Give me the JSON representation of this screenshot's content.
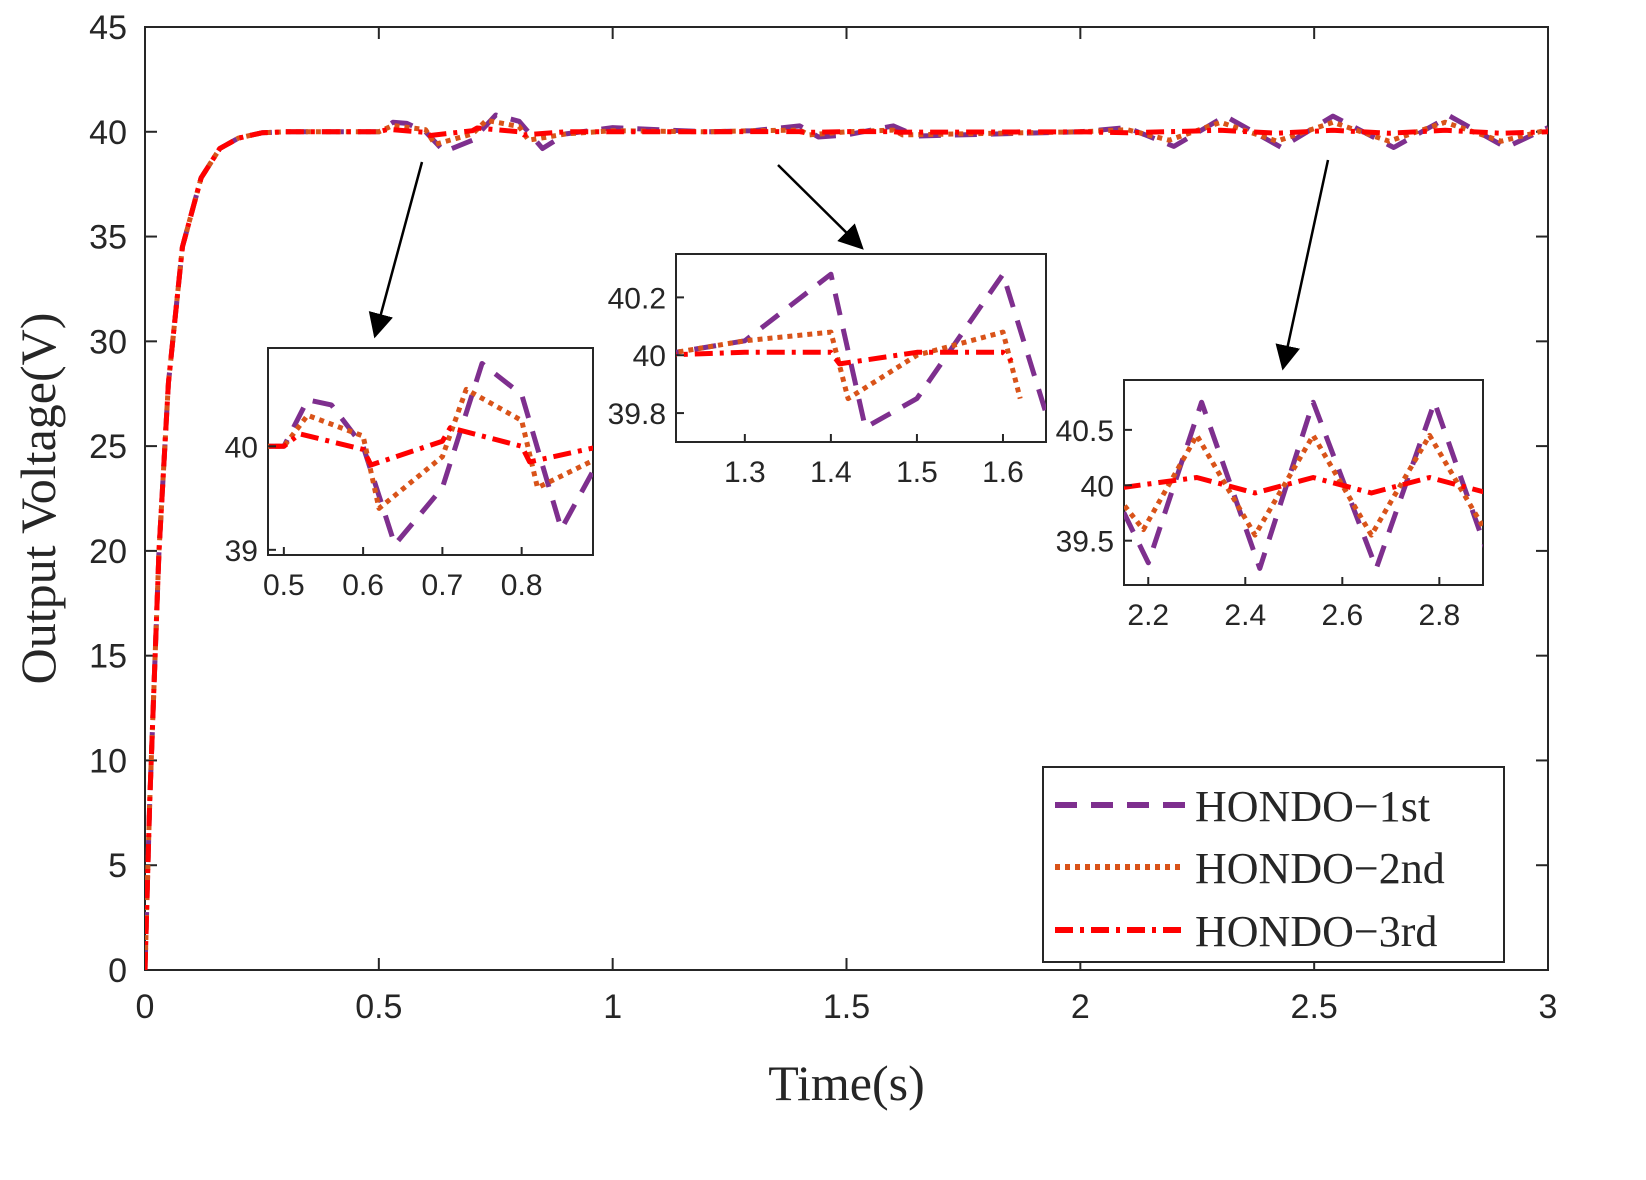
{
  "chart_data": {
    "type": "line",
    "title": "",
    "xlabel": "Time(s)",
    "ylabel": "Output Voltage(V)",
    "xlim": [
      0,
      3
    ],
    "ylim": [
      0,
      45
    ],
    "xticks": [
      "0",
      "0.5",
      "1",
      "1.5",
      "2",
      "2.5",
      "3"
    ],
    "yticks": [
      "0",
      "5",
      "10",
      "15",
      "20",
      "25",
      "30",
      "35",
      "40",
      "45"
    ],
    "grid": false,
    "legend_position": "bottom-right",
    "series": [
      {
        "name": "HONDO−1st",
        "color": "#7E2F8E",
        "dash": "dashed",
        "x": [
          0,
          0.01,
          0.03,
          0.05,
          0.08,
          0.12,
          0.16,
          0.2,
          0.25,
          0.3,
          0.5,
          0.53,
          0.56,
          0.6,
          0.64,
          0.7,
          0.75,
          0.8,
          0.85,
          0.9,
          1.0,
          1.2,
          1.3,
          1.4,
          1.44,
          1.5,
          1.6,
          1.65,
          2.0,
          2.1,
          2.2,
          2.31,
          2.43,
          2.54,
          2.67,
          2.79,
          2.91,
          3.0
        ],
        "y": [
          0,
          8,
          20,
          28,
          34.5,
          37.8,
          39.2,
          39.7,
          39.95,
          40.0,
          40.0,
          40.45,
          40.4,
          40.0,
          39.05,
          39.6,
          40.8,
          40.5,
          39.2,
          39.9,
          40.2,
          40.0,
          40.05,
          40.28,
          39.75,
          39.85,
          40.28,
          39.8,
          40.0,
          40.2,
          39.3,
          40.75,
          39.25,
          40.75,
          39.25,
          40.75,
          39.25,
          40.2
        ]
      },
      {
        "name": "HONDO−2nd",
        "color": "#D95319",
        "dash": "dotted",
        "x": [
          0,
          0.01,
          0.03,
          0.05,
          0.08,
          0.12,
          0.16,
          0.2,
          0.25,
          0.3,
          0.5,
          0.53,
          0.6,
          0.62,
          0.7,
          0.73,
          0.8,
          0.82,
          0.9,
          1.0,
          1.2,
          1.3,
          1.4,
          1.42,
          1.5,
          1.6,
          1.62,
          2.0,
          2.1,
          2.19,
          2.3,
          2.42,
          2.54,
          2.66,
          2.78,
          2.9,
          3.0
        ],
        "y": [
          0,
          8,
          20,
          28,
          34.5,
          37.8,
          39.2,
          39.7,
          39.95,
          40.0,
          40.0,
          40.3,
          40.1,
          39.4,
          39.9,
          40.55,
          40.25,
          39.6,
          39.9,
          40.05,
          40.0,
          40.05,
          40.08,
          39.85,
          40.0,
          40.08,
          39.85,
          40.0,
          40.1,
          39.6,
          40.45,
          39.55,
          40.45,
          39.55,
          40.45,
          39.55,
          40.1
        ]
      },
      {
        "name": "HONDO−3rd",
        "color": "#FF0000",
        "dash": "dashdot",
        "x": [
          0,
          0.01,
          0.03,
          0.05,
          0.08,
          0.12,
          0.16,
          0.2,
          0.25,
          0.3,
          0.5,
          0.52,
          0.6,
          0.61,
          0.7,
          0.71,
          0.8,
          0.81,
          0.9,
          1.0,
          1.2,
          1.3,
          1.4,
          1.41,
          1.5,
          1.6,
          1.61,
          2.0,
          2.1,
          2.18,
          2.3,
          2.42,
          2.54,
          2.66,
          2.78,
          2.9,
          3.0
        ],
        "y": [
          0,
          8,
          20,
          28,
          34.5,
          37.8,
          39.2,
          39.7,
          39.95,
          40.0,
          40.0,
          40.12,
          39.97,
          39.82,
          40.05,
          40.18,
          40.0,
          39.85,
          40.0,
          40.0,
          40.0,
          40.01,
          40.01,
          39.97,
          40.01,
          40.01,
          39.98,
          40.0,
          39.95,
          40.0,
          40.07,
          39.93,
          40.07,
          39.93,
          40.07,
          39.93,
          40.0
        ]
      }
    ],
    "insets": [
      {
        "xlim": [
          0.48,
          0.89
        ],
        "ylim": [
          38.95,
          40.95
        ],
        "xticks": [
          "0.5",
          "0.6",
          "0.7",
          "0.8"
        ],
        "xtick_values": [
          0.5,
          0.6,
          0.7,
          0.8
        ],
        "yticks": [
          "39",
          "40"
        ],
        "ytick_values": [
          39,
          40
        ],
        "arrow_from": {
          "x": 0.6,
          "y": 40.1
        }
      },
      {
        "xlim": [
          1.22,
          1.65
        ],
        "ylim": [
          39.7,
          40.35
        ],
        "xticks": [
          "1.3",
          "1.4",
          "1.5",
          "1.6"
        ],
        "xtick_values": [
          1.3,
          1.4,
          1.5,
          1.6
        ],
        "yticks": [
          "39.8",
          "40",
          "40.2"
        ],
        "ytick_values": [
          39.8,
          40,
          40.2
        ],
        "arrow_from": {
          "x": 1.4,
          "y": 40.1
        }
      },
      {
        "xlim": [
          2.15,
          2.89
        ],
        "ylim": [
          39.1,
          40.95
        ],
        "xticks": [
          "2.2",
          "2.4",
          "2.6",
          "2.8"
        ],
        "xtick_values": [
          2.2,
          2.4,
          2.6,
          2.8
        ],
        "yticks": [
          "39.5",
          "40",
          "40.5"
        ],
        "ytick_values": [
          39.5,
          40,
          40.5
        ],
        "arrow_from": {
          "x": 2.55,
          "y": 40.1
        }
      }
    ]
  }
}
